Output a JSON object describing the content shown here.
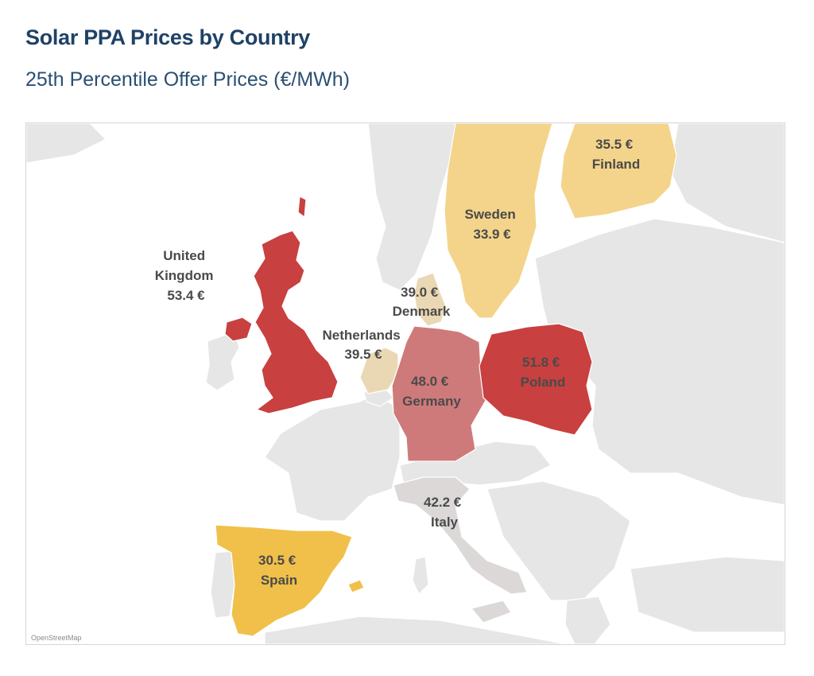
{
  "title": "Solar PPA Prices by Country",
  "subtitle": "25th Percentile Offer Prices (€/MWh)",
  "attribution": "OpenStreetMap",
  "colors": {
    "low": "#f0c04a",
    "mid_low": "#f3d48a",
    "light": "#ead8b4",
    "neutral": "#dcd8d8",
    "mid_high": "#cf7a7a",
    "high": "#c8403f",
    "background_land": "#e6e6e6"
  },
  "countries": [
    {
      "id": "uk",
      "label_lines": [
        "United",
        "Kingdom",
        "53.4 €"
      ],
      "price": 53.4
    },
    {
      "id": "poland",
      "label_lines": [
        "51.8 €",
        "Poland"
      ],
      "price": 51.8
    },
    {
      "id": "germany",
      "label_lines": [
        "48.0 €",
        "Germany"
      ],
      "price": 48.0
    },
    {
      "id": "italy",
      "label_lines": [
        "42.2 €",
        "Italy"
      ],
      "price": 42.2
    },
    {
      "id": "netherlands",
      "label_lines": [
        "Netherlands",
        "39.5 €"
      ],
      "price": 39.5
    },
    {
      "id": "denmark",
      "label_lines": [
        "39.0 €",
        "Denmark"
      ],
      "price": 39.0
    },
    {
      "id": "finland",
      "label_lines": [
        "35.5 €",
        "Finland"
      ],
      "price": 35.5
    },
    {
      "id": "sweden",
      "label_lines": [
        "Sweden",
        "33.9 €"
      ],
      "price": 33.9
    },
    {
      "id": "spain",
      "label_lines": [
        "30.5 €",
        "Spain"
      ],
      "price": 30.5
    }
  ]
}
